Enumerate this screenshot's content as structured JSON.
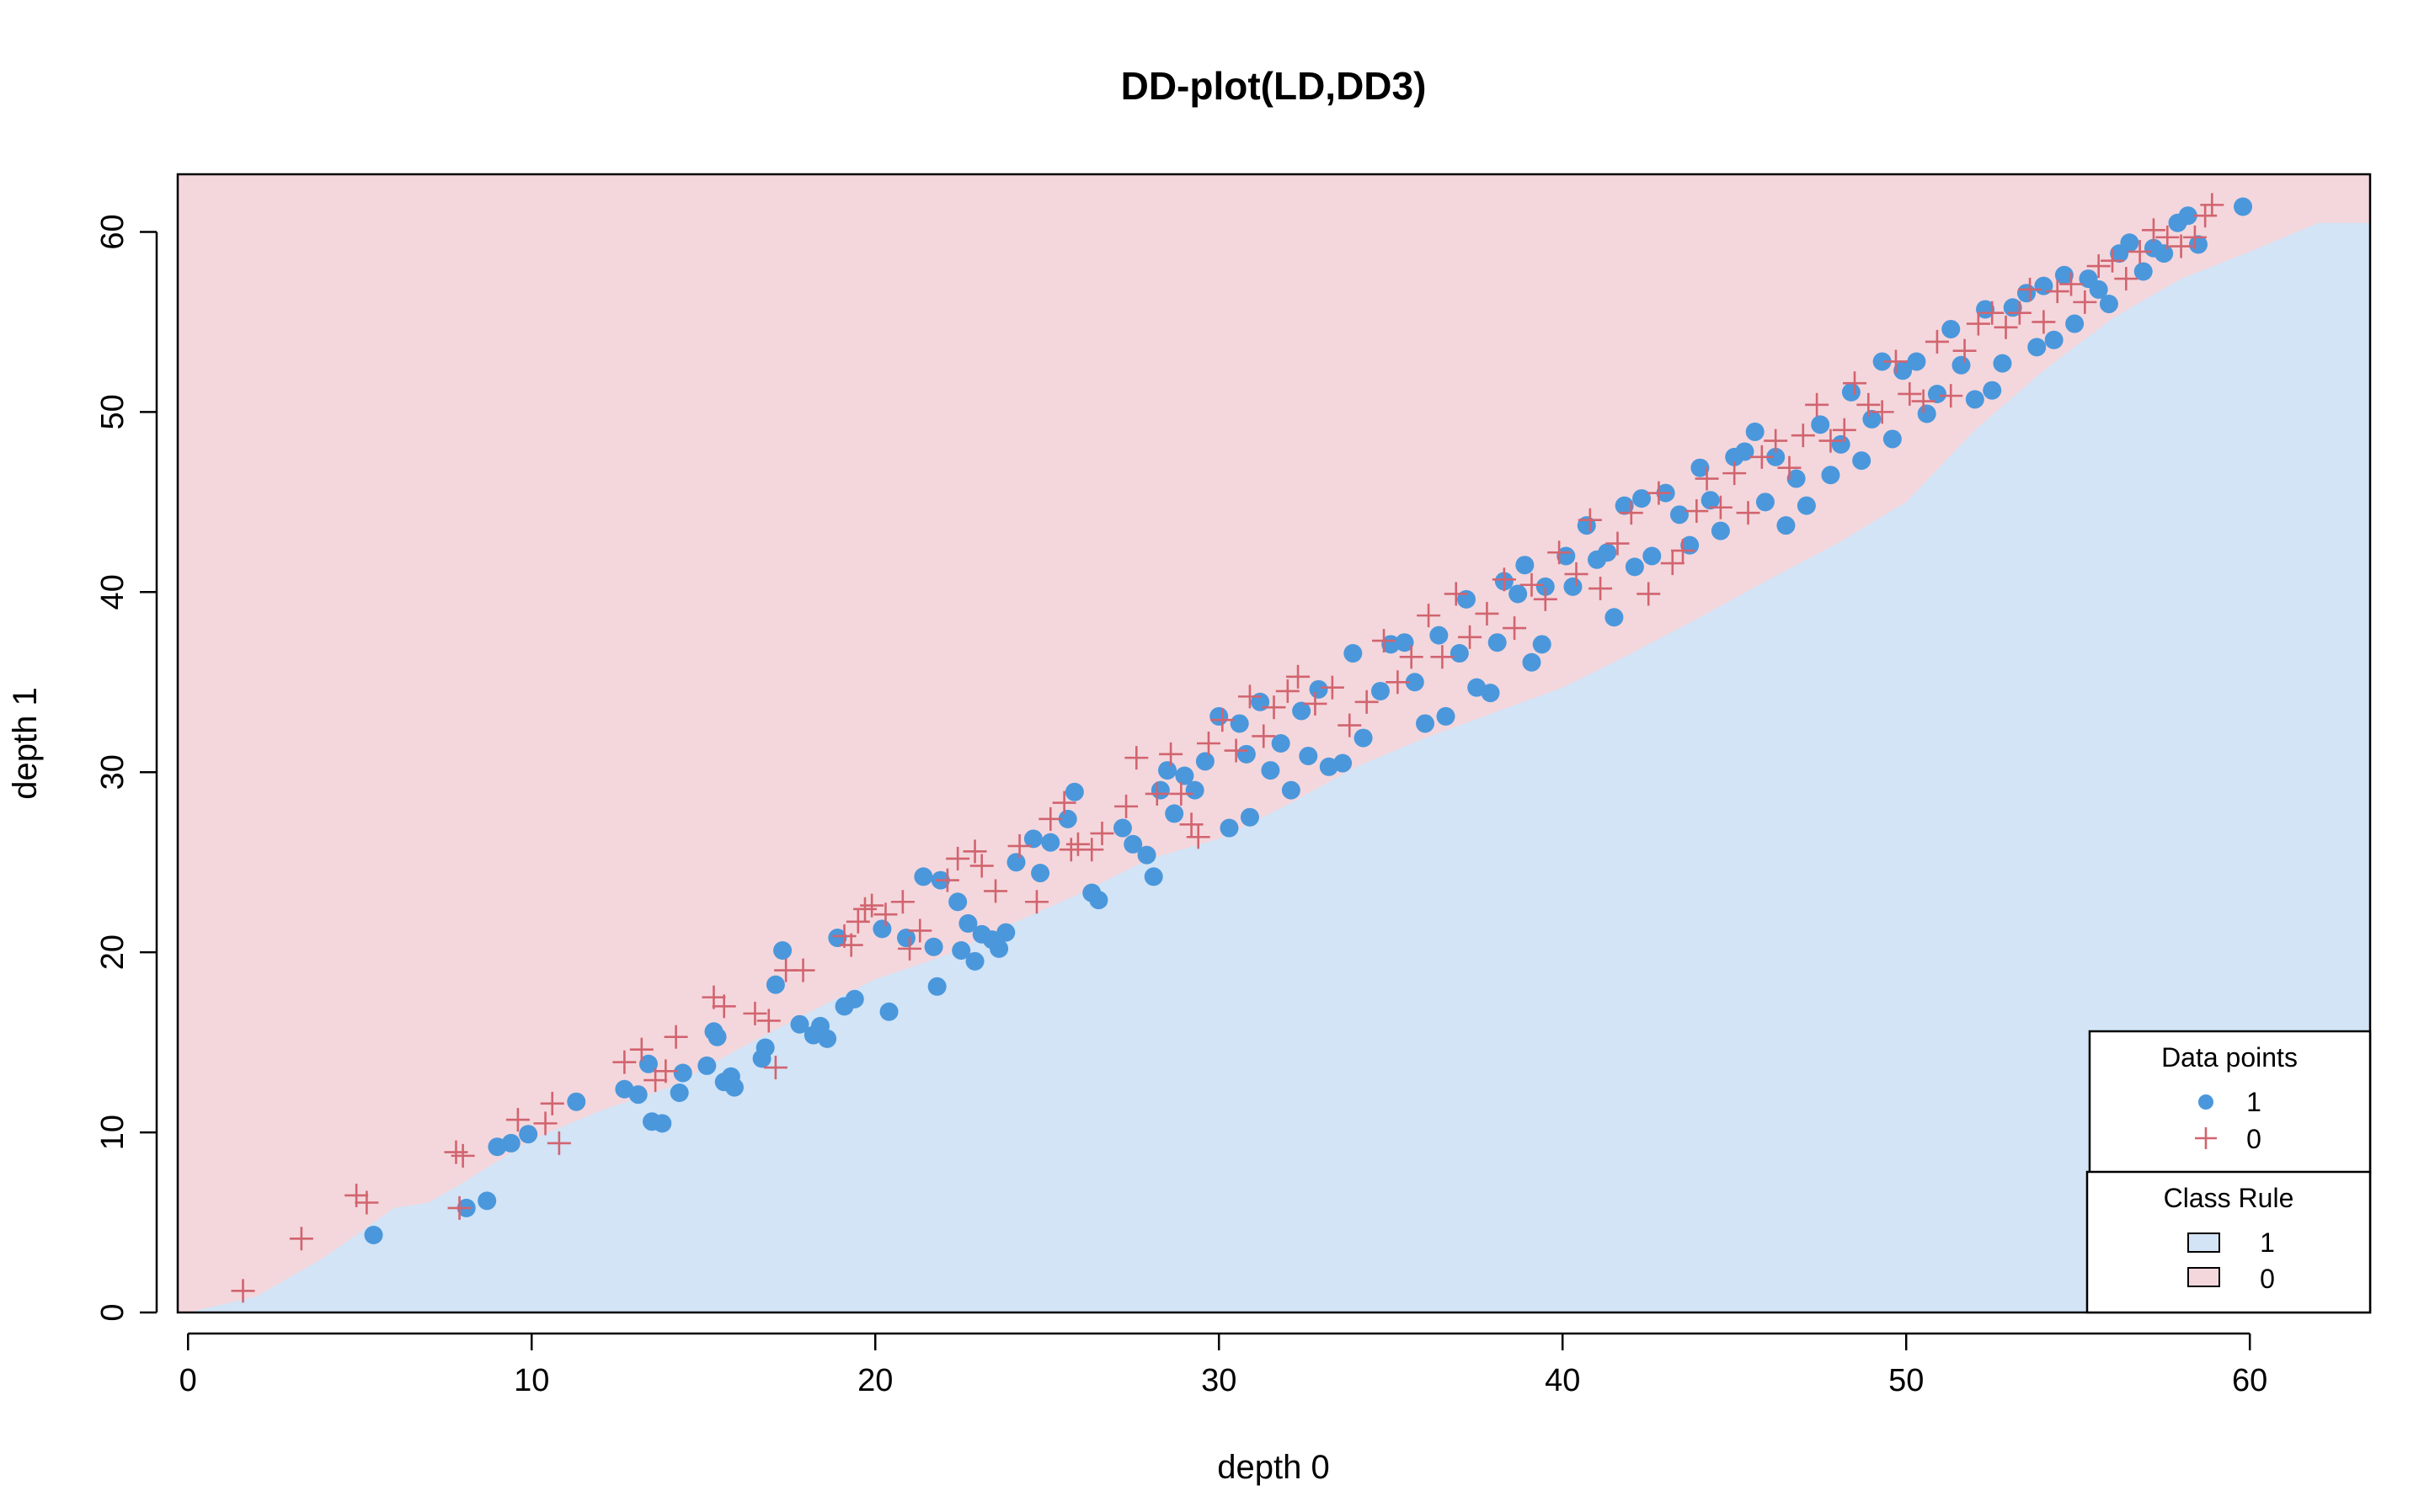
{
  "chart_data": {
    "type": "scatter",
    "title": "DD-plot(LD,DD3)",
    "xlabel": "depth 0",
    "ylabel": "depth 1",
    "xlim": [
      -0.3,
      63.5
    ],
    "ylim": [
      0,
      63.2
    ],
    "xticks": [
      0,
      10,
      20,
      30,
      40,
      50,
      60
    ],
    "yticks": [
      0,
      10,
      20,
      30,
      40,
      50,
      60
    ],
    "grid": false,
    "colors": {
      "class1_region": "#d2e4f6",
      "class0_region": "#f4d7dc",
      "class1_points": "#4b97dc",
      "class0_points": "#d1646f"
    },
    "boundary": [
      [
        0,
        0
      ],
      [
        2,
        0.9
      ],
      [
        4,
        3.1
      ],
      [
        6,
        5.8
      ],
      [
        7,
        6.1
      ],
      [
        8,
        7.2
      ],
      [
        10,
        9.6
      ],
      [
        12,
        11.2
      ],
      [
        14,
        12.5
      ],
      [
        16,
        14.6
      ],
      [
        18,
        16.6
      ],
      [
        20,
        18.5
      ],
      [
        22,
        19.8
      ],
      [
        24,
        21.6
      ],
      [
        26,
        23.3
      ],
      [
        28,
        25.2
      ],
      [
        30,
        26.3
      ],
      [
        32,
        28.2
      ],
      [
        34,
        30.3
      ],
      [
        36,
        31.9
      ],
      [
        38,
        33.3
      ],
      [
        40,
        34.7
      ],
      [
        42,
        36.6
      ],
      [
        44,
        38.6
      ],
      [
        46,
        40.7
      ],
      [
        48,
        42.7
      ],
      [
        50,
        45.0
      ],
      [
        52,
        49.0
      ],
      [
        54,
        52.3
      ],
      [
        56,
        55.2
      ],
      [
        58,
        57.4
      ],
      [
        60,
        58.9
      ],
      [
        62,
        60.5
      ],
      [
        63.5,
        60.5
      ]
    ],
    "series": [
      {
        "name": "1",
        "marker": "filled-circle",
        "points": [
          [
            5.4,
            4.3
          ],
          [
            8.1,
            5.8
          ],
          [
            8.7,
            6.2
          ],
          [
            9.0,
            9.2
          ],
          [
            9.4,
            9.4
          ],
          [
            9.9,
            9.9
          ],
          [
            11.3,
            11.7
          ],
          [
            12.7,
            12.4
          ],
          [
            13.1,
            12.1
          ],
          [
            13.4,
            13.8
          ],
          [
            13.5,
            10.6
          ],
          [
            13.8,
            10.5
          ],
          [
            14.3,
            12.2
          ],
          [
            14.4,
            13.3
          ],
          [
            15.1,
            13.7
          ],
          [
            15.3,
            15.6
          ],
          [
            15.4,
            15.3
          ],
          [
            15.6,
            12.8
          ],
          [
            15.8,
            13.1
          ],
          [
            15.9,
            12.5
          ],
          [
            16.7,
            14.1
          ],
          [
            16.8,
            14.7
          ],
          [
            17.1,
            18.2
          ],
          [
            17.3,
            20.1
          ],
          [
            17.8,
            16.0
          ],
          [
            18.2,
            15.4
          ],
          [
            18.4,
            15.9
          ],
          [
            18.6,
            15.2
          ],
          [
            18.9,
            20.8
          ],
          [
            19.1,
            17.0
          ],
          [
            19.4,
            17.4
          ],
          [
            20.2,
            21.3
          ],
          [
            20.4,
            16.7
          ],
          [
            20.9,
            20.8
          ],
          [
            21.4,
            24.2
          ],
          [
            21.7,
            20.3
          ],
          [
            21.8,
            18.1
          ],
          [
            21.9,
            24.0
          ],
          [
            22.4,
            22.8
          ],
          [
            22.5,
            20.1
          ],
          [
            22.7,
            21.6
          ],
          [
            22.9,
            19.5
          ],
          [
            23.1,
            21.0
          ],
          [
            23.4,
            20.7
          ],
          [
            23.6,
            20.2
          ],
          [
            23.8,
            21.1
          ],
          [
            24.1,
            25.0
          ],
          [
            24.6,
            26.3
          ],
          [
            24.8,
            24.4
          ],
          [
            25.1,
            26.1
          ],
          [
            25.6,
            27.4
          ],
          [
            25.8,
            28.9
          ],
          [
            26.3,
            23.3
          ],
          [
            26.5,
            22.9
          ],
          [
            27.2,
            26.9
          ],
          [
            27.5,
            26.0
          ],
          [
            27.9,
            25.4
          ],
          [
            28.1,
            24.2
          ],
          [
            28.3,
            29.0
          ],
          [
            28.5,
            30.1
          ],
          [
            28.7,
            27.7
          ],
          [
            29.0,
            29.8
          ],
          [
            29.3,
            29.0
          ],
          [
            29.6,
            30.6
          ],
          [
            30.0,
            33.1
          ],
          [
            30.3,
            26.9
          ],
          [
            30.6,
            32.7
          ],
          [
            30.8,
            31.0
          ],
          [
            30.9,
            27.5
          ],
          [
            31.2,
            33.9
          ],
          [
            31.5,
            30.1
          ],
          [
            31.8,
            31.6
          ],
          [
            32.1,
            29.0
          ],
          [
            32.4,
            33.4
          ],
          [
            32.6,
            30.9
          ],
          [
            32.9,
            34.6
          ],
          [
            33.2,
            30.3
          ],
          [
            33.6,
            30.5
          ],
          [
            33.9,
            36.6
          ],
          [
            34.2,
            31.9
          ],
          [
            34.7,
            34.5
          ],
          [
            35.0,
            37.1
          ],
          [
            35.4,
            37.2
          ],
          [
            35.7,
            35.0
          ],
          [
            36.0,
            32.7
          ],
          [
            36.4,
            37.6
          ],
          [
            36.6,
            33.1
          ],
          [
            37.0,
            36.6
          ],
          [
            37.2,
            39.6
          ],
          [
            37.5,
            34.7
          ],
          [
            37.9,
            34.4
          ],
          [
            38.1,
            37.2
          ],
          [
            38.3,
            40.6
          ],
          [
            38.7,
            39.9
          ],
          [
            38.9,
            41.5
          ],
          [
            39.1,
            36.1
          ],
          [
            39.4,
            37.1
          ],
          [
            39.5,
            40.3
          ],
          [
            40.1,
            42.0
          ],
          [
            40.3,
            40.3
          ],
          [
            40.7,
            43.7
          ],
          [
            41.0,
            41.8
          ],
          [
            41.3,
            42.2
          ],
          [
            41.5,
            38.6
          ],
          [
            41.8,
            44.8
          ],
          [
            42.1,
            41.4
          ],
          [
            42.3,
            45.2
          ],
          [
            42.6,
            42.0
          ],
          [
            43.0,
            45.5
          ],
          [
            43.4,
            44.3
          ],
          [
            43.7,
            42.6
          ],
          [
            44.0,
            46.9
          ],
          [
            44.3,
            45.1
          ],
          [
            44.6,
            43.4
          ],
          [
            45.0,
            47.5
          ],
          [
            45.3,
            47.8
          ],
          [
            45.6,
            48.9
          ],
          [
            45.9,
            45.0
          ],
          [
            46.2,
            47.5
          ],
          [
            46.5,
            43.7
          ],
          [
            46.8,
            46.3
          ],
          [
            47.1,
            44.8
          ],
          [
            47.5,
            49.3
          ],
          [
            47.8,
            46.5
          ],
          [
            48.1,
            48.2
          ],
          [
            48.4,
            51.1
          ],
          [
            48.7,
            47.3
          ],
          [
            49.0,
            49.6
          ],
          [
            49.3,
            52.8
          ],
          [
            49.6,
            48.5
          ],
          [
            49.9,
            52.3
          ],
          [
            50.3,
            52.8
          ],
          [
            50.6,
            49.9
          ],
          [
            50.9,
            51.0
          ],
          [
            51.3,
            54.6
          ],
          [
            51.6,
            52.6
          ],
          [
            52.0,
            50.7
          ],
          [
            52.3,
            55.7
          ],
          [
            52.5,
            51.2
          ],
          [
            52.8,
            52.7
          ],
          [
            53.1,
            55.8
          ],
          [
            53.5,
            56.6
          ],
          [
            53.8,
            53.6
          ],
          [
            54.0,
            57.0
          ],
          [
            54.3,
            54.0
          ],
          [
            54.6,
            57.6
          ],
          [
            54.9,
            54.9
          ],
          [
            55.3,
            57.4
          ],
          [
            55.6,
            56.8
          ],
          [
            55.9,
            56.0
          ],
          [
            56.2,
            58.8
          ],
          [
            56.5,
            59.4
          ],
          [
            56.9,
            57.8
          ],
          [
            57.2,
            59.1
          ],
          [
            57.5,
            58.8
          ],
          [
            57.9,
            60.5
          ],
          [
            58.2,
            60.9
          ],
          [
            58.5,
            59.3
          ],
          [
            59.8,
            61.4
          ]
        ]
      },
      {
        "name": "0",
        "marker": "plus",
        "points": [
          [
            1.6,
            1.2
          ],
          [
            3.3,
            4.1
          ],
          [
            4.9,
            6.5
          ],
          [
            5.2,
            6.1
          ],
          [
            7.8,
            8.9
          ],
          [
            7.9,
            5.8
          ],
          [
            8.0,
            8.7
          ],
          [
            9.6,
            10.7
          ],
          [
            10.4,
            10.5
          ],
          [
            10.6,
            11.6
          ],
          [
            10.8,
            9.4
          ],
          [
            12.7,
            13.9
          ],
          [
            13.2,
            14.6
          ],
          [
            13.6,
            12.9
          ],
          [
            13.9,
            13.4
          ],
          [
            14.2,
            15.3
          ],
          [
            15.3,
            17.5
          ],
          [
            15.6,
            17.0
          ],
          [
            16.5,
            16.6
          ],
          [
            16.9,
            16.2
          ],
          [
            17.1,
            13.6
          ],
          [
            17.4,
            19.0
          ],
          [
            17.9,
            19.0
          ],
          [
            19.1,
            20.9
          ],
          [
            19.3,
            20.4
          ],
          [
            19.5,
            21.7
          ],
          [
            19.7,
            22.4
          ],
          [
            19.9,
            22.6
          ],
          [
            20.3,
            22.1
          ],
          [
            20.8,
            22.8
          ],
          [
            21.0,
            20.2
          ],
          [
            21.3,
            21.2
          ],
          [
            22.1,
            24.0
          ],
          [
            22.4,
            25.2
          ],
          [
            22.9,
            25.6
          ],
          [
            23.1,
            24.8
          ],
          [
            23.5,
            23.4
          ],
          [
            24.2,
            25.9
          ],
          [
            24.7,
            22.8
          ],
          [
            25.1,
            27.4
          ],
          [
            25.5,
            28.3
          ],
          [
            25.7,
            25.7
          ],
          [
            25.9,
            26.0
          ],
          [
            26.3,
            25.7
          ],
          [
            26.6,
            26.6
          ],
          [
            27.3,
            28.1
          ],
          [
            27.6,
            30.8
          ],
          [
            28.2,
            28.8
          ],
          [
            28.6,
            31.0
          ],
          [
            28.9,
            28.8
          ],
          [
            29.2,
            27.1
          ],
          [
            29.4,
            26.4
          ],
          [
            29.7,
            31.6
          ],
          [
            30.1,
            32.9
          ],
          [
            30.5,
            31.2
          ],
          [
            30.9,
            34.2
          ],
          [
            31.3,
            32.0
          ],
          [
            31.6,
            33.6
          ],
          [
            32.0,
            34.5
          ],
          [
            32.3,
            35.3
          ],
          [
            32.8,
            33.8
          ],
          [
            33.3,
            34.7
          ],
          [
            33.8,
            32.6
          ],
          [
            34.3,
            33.9
          ],
          [
            34.8,
            37.3
          ],
          [
            35.2,
            35.0
          ],
          [
            35.6,
            36.4
          ],
          [
            36.1,
            38.7
          ],
          [
            36.5,
            36.4
          ],
          [
            36.9,
            39.9
          ],
          [
            37.3,
            37.5
          ],
          [
            37.8,
            38.8
          ],
          [
            38.3,
            40.7
          ],
          [
            38.6,
            38.0
          ],
          [
            39.1,
            40.4
          ],
          [
            39.5,
            39.6
          ],
          [
            39.9,
            42.2
          ],
          [
            40.4,
            41.0
          ],
          [
            40.8,
            44.0
          ],
          [
            41.1,
            40.2
          ],
          [
            41.6,
            42.7
          ],
          [
            42.0,
            44.4
          ],
          [
            42.5,
            39.9
          ],
          [
            42.8,
            45.5
          ],
          [
            43.2,
            41.6
          ],
          [
            43.5,
            42.3
          ],
          [
            43.9,
            44.5
          ],
          [
            44.2,
            46.3
          ],
          [
            44.6,
            44.7
          ],
          [
            45.0,
            46.6
          ],
          [
            45.4,
            44.4
          ],
          [
            45.8,
            47.5
          ],
          [
            46.2,
            48.4
          ],
          [
            46.6,
            46.9
          ],
          [
            47.0,
            48.7
          ],
          [
            47.4,
            50.4
          ],
          [
            47.8,
            48.4
          ],
          [
            48.2,
            49.0
          ],
          [
            48.5,
            51.6
          ],
          [
            48.9,
            50.4
          ],
          [
            49.3,
            50.0
          ],
          [
            49.7,
            52.8
          ],
          [
            50.1,
            51.0
          ],
          [
            50.5,
            50.6
          ],
          [
            50.9,
            53.9
          ],
          [
            51.3,
            50.9
          ],
          [
            51.7,
            53.4
          ],
          [
            52.1,
            54.9
          ],
          [
            52.5,
            55.5
          ],
          [
            52.9,
            54.7
          ],
          [
            53.3,
            55.5
          ],
          [
            53.6,
            56.8
          ],
          [
            54.0,
            55.0
          ],
          [
            54.4,
            56.7
          ],
          [
            54.8,
            57.1
          ],
          [
            55.2,
            56.1
          ],
          [
            55.6,
            58.1
          ],
          [
            56.0,
            58.4
          ],
          [
            56.4,
            57.4
          ],
          [
            56.8,
            58.9
          ],
          [
            57.2,
            60.1
          ],
          [
            57.6,
            59.7
          ],
          [
            58.0,
            59.2
          ],
          [
            58.4,
            59.7
          ],
          [
            58.7,
            60.9
          ],
          [
            58.9,
            61.5
          ]
        ]
      }
    ],
    "legends": {
      "data_points": {
        "title": "Data points",
        "entries": [
          "1",
          "0"
        ]
      },
      "class_rule": {
        "title": "Class Rule",
        "entries": [
          "1",
          "0"
        ]
      }
    }
  }
}
